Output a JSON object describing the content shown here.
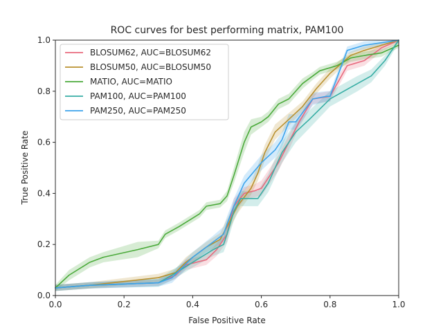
{
  "chart_data": {
    "type": "line",
    "title": "ROC curves for best performing matrix, PAM100",
    "xlabel": "False Positive Rate",
    "ylabel": "True Positive Rate",
    "xlim": [
      0.0,
      1.0
    ],
    "ylim": [
      0.0,
      1.0
    ],
    "xticks": [
      "0.0",
      "0.2",
      "0.4",
      "0.6",
      "0.8",
      "1.0"
    ],
    "yticks": [
      "0.0",
      "0.2",
      "0.4",
      "0.6",
      "0.8",
      "1.0"
    ],
    "grid": false,
    "legend_position": "top-left",
    "series": [
      {
        "name": "BLOSUM62, AUC=BLOSUM62",
        "color": "#e8697d",
        "x": [
          0.0,
          0.1,
          0.3,
          0.35,
          0.38,
          0.44,
          0.47,
          0.5,
          0.51,
          0.52,
          0.55,
          0.58,
          0.6,
          0.65,
          0.68,
          0.71,
          0.75,
          0.8,
          0.85,
          0.9,
          0.95,
          1.0
        ],
        "y": [
          0.03,
          0.04,
          0.05,
          0.08,
          0.12,
          0.14,
          0.18,
          0.24,
          0.3,
          0.35,
          0.4,
          0.41,
          0.42,
          0.52,
          0.6,
          0.68,
          0.77,
          0.78,
          0.9,
          0.92,
          0.97,
          1.0
        ],
        "band": [
          0.012,
          0.012,
          0.012,
          0.015,
          0.02,
          0.02,
          0.025,
          0.03,
          0.03,
          0.03,
          0.025,
          0.025,
          0.03,
          0.03,
          0.03,
          0.02,
          0.02,
          0.02,
          0.02,
          0.02,
          0.015,
          0.01
        ]
      },
      {
        "name": "BLOSUM50, AUC=BLOSUM50",
        "color": "#b9902e",
        "x": [
          0.0,
          0.1,
          0.3,
          0.35,
          0.38,
          0.44,
          0.48,
          0.5,
          0.53,
          0.57,
          0.59,
          0.61,
          0.64,
          0.68,
          0.72,
          0.76,
          0.8,
          0.86,
          0.9,
          0.95,
          1.0
        ],
        "y": [
          0.03,
          0.04,
          0.07,
          0.09,
          0.13,
          0.19,
          0.22,
          0.27,
          0.35,
          0.42,
          0.48,
          0.56,
          0.64,
          0.69,
          0.74,
          0.81,
          0.87,
          0.94,
          0.96,
          0.98,
          1.0
        ],
        "band": [
          0.012,
          0.012,
          0.015,
          0.015,
          0.02,
          0.02,
          0.025,
          0.03,
          0.03,
          0.025,
          0.03,
          0.03,
          0.03,
          0.025,
          0.02,
          0.02,
          0.02,
          0.015,
          0.015,
          0.01,
          0.01
        ]
      },
      {
        "name": "MATIO, AUC=MATIO",
        "color": "#4aaa3a",
        "x": [
          0.0,
          0.04,
          0.1,
          0.14,
          0.24,
          0.3,
          0.32,
          0.36,
          0.42,
          0.44,
          0.48,
          0.5,
          0.52,
          0.55,
          0.57,
          0.6,
          0.62,
          0.65,
          0.68,
          0.72,
          0.75,
          0.77,
          0.82,
          0.86,
          0.9,
          0.95,
          1.0
        ],
        "y": [
          0.03,
          0.08,
          0.13,
          0.15,
          0.18,
          0.2,
          0.24,
          0.27,
          0.32,
          0.35,
          0.36,
          0.39,
          0.47,
          0.6,
          0.66,
          0.68,
          0.7,
          0.75,
          0.77,
          0.83,
          0.86,
          0.88,
          0.9,
          0.93,
          0.94,
          0.95,
          0.98
        ],
        "band": [
          0.012,
          0.02,
          0.02,
          0.02,
          0.03,
          0.015,
          0.015,
          0.015,
          0.015,
          0.015,
          0.015,
          0.02,
          0.03,
          0.04,
          0.03,
          0.02,
          0.02,
          0.02,
          0.02,
          0.02,
          0.015,
          0.015,
          0.015,
          0.015,
          0.015,
          0.015,
          0.01
        ]
      },
      {
        "name": "PAM100, AUC=PAM100",
        "color": "#36ada4",
        "x": [
          0.0,
          0.1,
          0.3,
          0.34,
          0.4,
          0.46,
          0.49,
          0.5,
          0.52,
          0.54,
          0.59,
          0.62,
          0.66,
          0.7,
          0.74,
          0.8,
          0.84,
          0.88,
          0.92,
          0.96,
          1.0
        ],
        "y": [
          0.03,
          0.04,
          0.05,
          0.08,
          0.13,
          0.18,
          0.2,
          0.24,
          0.33,
          0.38,
          0.38,
          0.44,
          0.56,
          0.64,
          0.69,
          0.77,
          0.8,
          0.83,
          0.86,
          0.92,
          1.0
        ],
        "band": [
          0.012,
          0.012,
          0.015,
          0.02,
          0.02,
          0.025,
          0.03,
          0.035,
          0.035,
          0.03,
          0.03,
          0.035,
          0.04,
          0.04,
          0.035,
          0.03,
          0.03,
          0.03,
          0.025,
          0.02,
          0.01
        ]
      },
      {
        "name": "PAM250, AUC=PAM250",
        "color": "#3ba3ec",
        "x": [
          0.0,
          0.1,
          0.3,
          0.34,
          0.4,
          0.46,
          0.49,
          0.5,
          0.52,
          0.55,
          0.6,
          0.64,
          0.66,
          0.68,
          0.7,
          0.75,
          0.79,
          0.8,
          0.85,
          0.9,
          0.95,
          1.0
        ],
        "y": [
          0.03,
          0.04,
          0.05,
          0.07,
          0.15,
          0.21,
          0.24,
          0.28,
          0.35,
          0.44,
          0.52,
          0.57,
          0.61,
          0.68,
          0.68,
          0.77,
          0.78,
          0.78,
          0.96,
          0.98,
          0.99,
          1.0
        ],
        "band": [
          0.012,
          0.012,
          0.015,
          0.02,
          0.02,
          0.025,
          0.03,
          0.03,
          0.03,
          0.03,
          0.03,
          0.03,
          0.03,
          0.03,
          0.03,
          0.025,
          0.02,
          0.02,
          0.015,
          0.015,
          0.01,
          0.01
        ]
      }
    ]
  }
}
